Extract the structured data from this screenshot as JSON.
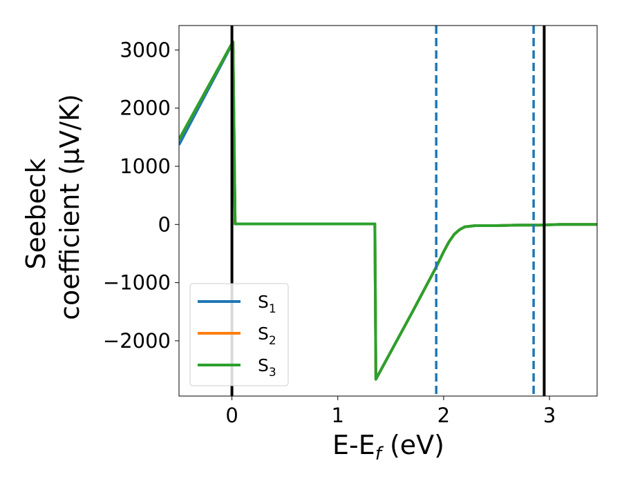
{
  "chart_data": {
    "type": "line",
    "xlabel_main": "E-E",
    "xlabel_sub": "f",
    "xlabel_unit": " (eV)",
    "ylabel_line1": "Seebeck",
    "ylabel_line2": "coefficient  (μV/K)",
    "xlim": [
      -0.5,
      3.45
    ],
    "ylim": [
      -2950,
      3420
    ],
    "xticks": [
      0,
      1,
      2,
      3
    ],
    "xtick_labels": [
      "0",
      "1",
      "2",
      "3"
    ],
    "yticks": [
      -2000,
      -1000,
      0,
      1000,
      2000,
      3000
    ],
    "ytick_labels": [
      "−2000",
      "−1000",
      "0",
      "1000",
      "2000",
      "3000"
    ],
    "grid": false,
    "legend_position": "lower-left",
    "vlines": [
      {
        "x": 0.0,
        "style": "solid",
        "color": "#000000"
      },
      {
        "x": 2.95,
        "style": "solid",
        "color": "#000000"
      },
      {
        "x": 1.93,
        "style": "dashed",
        "color": "#1f77b4"
      },
      {
        "x": 2.85,
        "style": "dashed",
        "color": "#1f77b4"
      }
    ],
    "series": [
      {
        "name": "S",
        "sub": "1",
        "color": "#1f77b4",
        "x": [
          -0.5,
          -0.3,
          -0.1,
          0.0,
          0.01,
          0.03,
          1.35,
          1.36,
          1.7,
          1.93,
          2.0,
          2.05,
          2.1,
          2.15,
          2.2,
          2.3,
          2.5,
          2.7,
          2.9,
          3.1,
          3.3,
          3.45
        ],
        "y": [
          1370,
          2060,
          2750,
          3100,
          3120,
          10,
          10,
          -2660,
          -1520,
          -730,
          -470,
          -300,
          -170,
          -90,
          -40,
          -20,
          -20,
          -10,
          -10,
          0,
          0,
          0
        ]
      },
      {
        "name": "S",
        "sub": "2",
        "color": "#ff7f0e",
        "x": [
          -0.5,
          -0.3,
          -0.1,
          0.0,
          0.01,
          0.03,
          1.35,
          1.36,
          1.7,
          1.93,
          2.0,
          2.05,
          2.1,
          2.15,
          2.2,
          2.3,
          2.5,
          2.7,
          2.9,
          3.1,
          3.3,
          3.45
        ],
        "y": [
          1460,
          2120,
          2780,
          3110,
          3140,
          10,
          10,
          -2660,
          -1520,
          -730,
          -470,
          -300,
          -170,
          -90,
          -40,
          -20,
          -20,
          -10,
          -10,
          0,
          0,
          0
        ]
      },
      {
        "name": "S",
        "sub": "3",
        "color": "#2ca02c",
        "x": [
          -0.5,
          -0.3,
          -0.1,
          0.0,
          0.01,
          0.03,
          1.35,
          1.36,
          1.7,
          1.93,
          2.0,
          2.05,
          2.1,
          2.15,
          2.2,
          2.3,
          2.5,
          2.7,
          2.9,
          3.1,
          3.3,
          3.45
        ],
        "y": [
          1460,
          2120,
          2780,
          3110,
          3140,
          10,
          10,
          -2660,
          -1520,
          -730,
          -470,
          -300,
          -170,
          -90,
          -40,
          -20,
          -20,
          -10,
          -10,
          0,
          0,
          0
        ]
      }
    ]
  }
}
